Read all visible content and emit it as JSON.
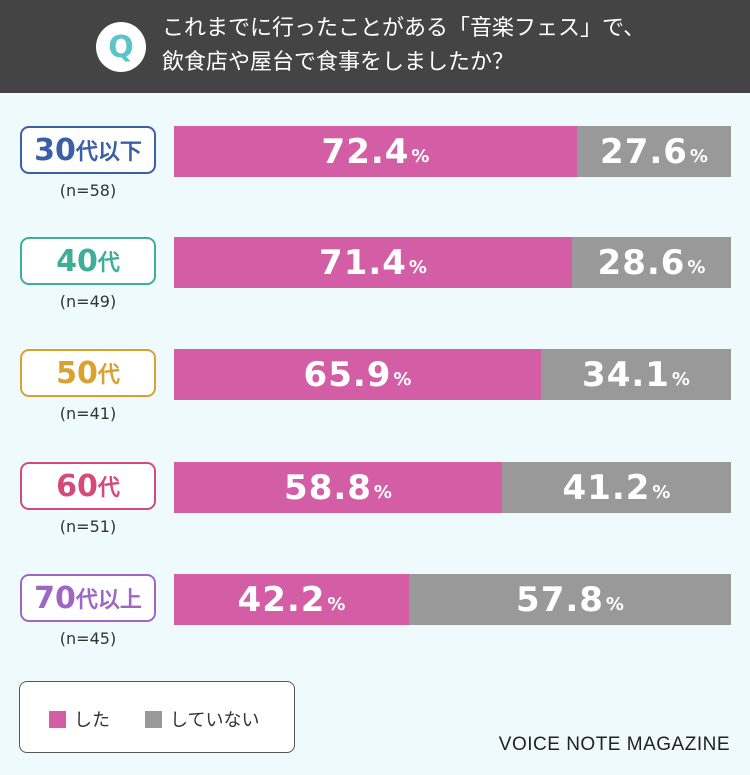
{
  "question": {
    "icon_letter": "Q",
    "line1": "これまでに行ったことがある「音楽フェス」で、",
    "line2": "飲食店や屋台で食事をしましたか？"
  },
  "colors": {
    "did": "#d45ea6",
    "did_not": "#999999",
    "header_bg": "#444444",
    "background": "#eefafc"
  },
  "chart_data": {
    "type": "bar",
    "orientation": "horizontal-stacked-100",
    "categories": [
      "30代以下",
      "40代",
      "50代",
      "60代",
      "70代以上"
    ],
    "sample_sizes": [
      "(n=58)",
      "(n=49)",
      "(n=41)",
      "(n=51)",
      "(n=45)"
    ],
    "series": [
      {
        "name": "した",
        "values": [
          72.4,
          71.4,
          65.9,
          58.8,
          42.2
        ]
      },
      {
        "name": "していない",
        "values": [
          27.6,
          28.6,
          34.1,
          41.2,
          57.8
        ]
      }
    ],
    "unit": "%",
    "xlim": [
      0,
      100
    ],
    "legend": "bottom-left"
  },
  "rows": [
    {
      "num": "30",
      "suffix": "代以下",
      "n": "(n=58)",
      "color": "#3a5fa8",
      "did": "72.4",
      "did_not": "27.6"
    },
    {
      "num": "40",
      "suffix": "代",
      "n": "(n=49)",
      "color": "#3fae96",
      "did": "71.4",
      "did_not": "28.6"
    },
    {
      "num": "50",
      "suffix": "代",
      "n": "(n=41)",
      "color": "#d9a12f",
      "did": "65.9",
      "did_not": "34.1"
    },
    {
      "num": "60",
      "suffix": "代",
      "n": "(n=51)",
      "color": "#d44a78",
      "did": "58.8",
      "did_not": "41.2"
    },
    {
      "num": "70",
      "suffix": "代以上",
      "n": "(n=45)",
      "color": "#a066c4",
      "did": "42.2",
      "did_not": "57.8"
    }
  ],
  "legend": {
    "did_label": "した",
    "did_not_label": "していない"
  },
  "footer": "VOICE NOTE MAGAZINE"
}
